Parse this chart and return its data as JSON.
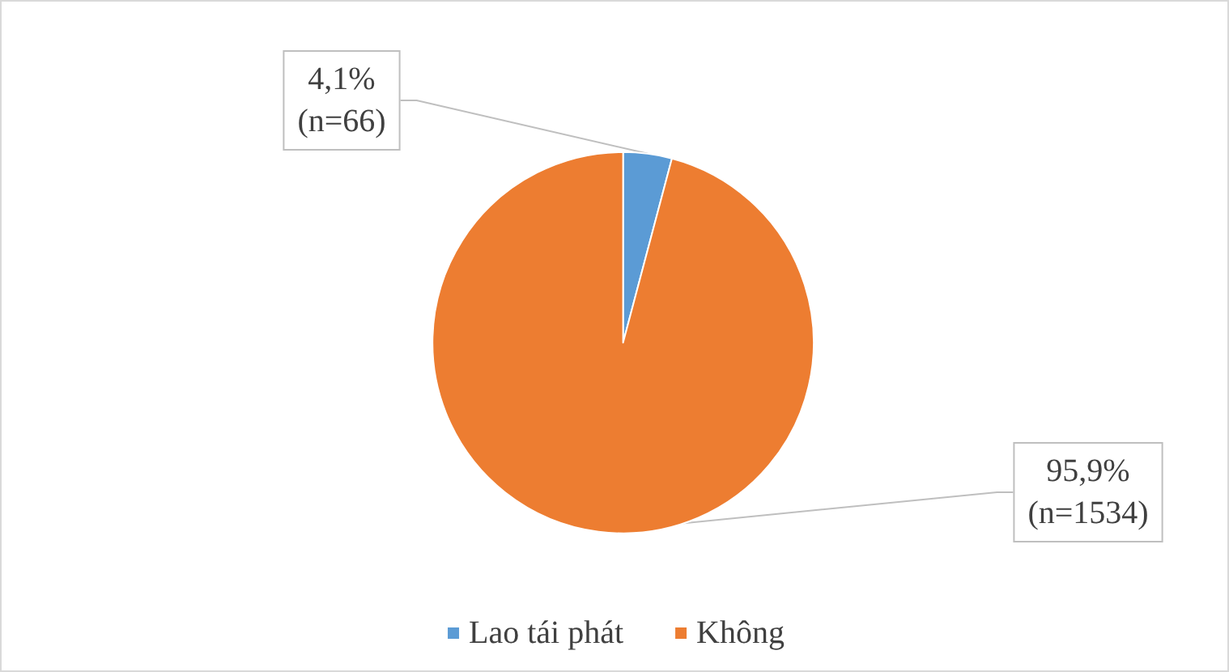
{
  "chart_data": {
    "type": "pie",
    "categories": [
      "Lao tái phát",
      "Không"
    ],
    "values": [
      66,
      1534
    ],
    "colors": [
      "#5b9bd5",
      "#ed7d31"
    ],
    "value_labels": [
      "4,1%\n(n=66)",
      "95,9%\n(n=1534)"
    ],
    "legend": "bottom"
  }
}
